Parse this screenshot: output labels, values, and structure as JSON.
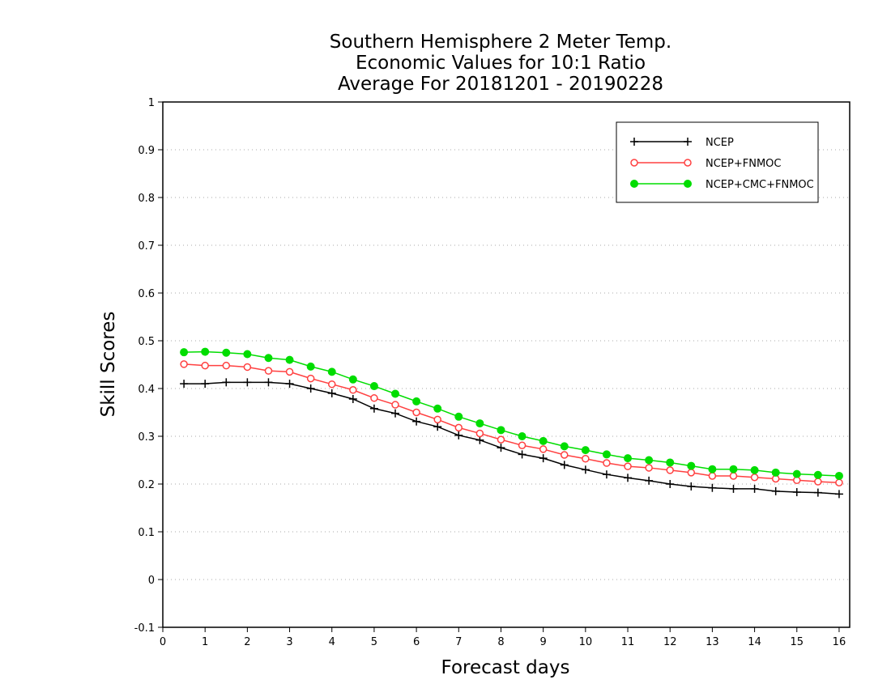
{
  "chart_data": {
    "type": "line",
    "title": [
      "Southern Hemisphere 2 Meter Temp.",
      "Economic Values for 10:1 Ratio",
      "Average For 20181201 - 20190228"
    ],
    "xlabel": "Forecast days",
    "ylabel": "Skill Scores",
    "xlim": [
      0,
      16.25
    ],
    "ylim": [
      -0.1,
      1
    ],
    "xticks": [
      0,
      1,
      2,
      3,
      4,
      5,
      6,
      7,
      8,
      9,
      10,
      11,
      12,
      13,
      14,
      15,
      16
    ],
    "yticks": [
      -0.1,
      0,
      0.1,
      0.2,
      0.3,
      0.4,
      0.5,
      0.6,
      0.7,
      0.8,
      0.9,
      1
    ],
    "ytick_labels": [
      "-0.1",
      "0",
      "0.1",
      "0.2",
      "0.3",
      "0.4",
      "0.5",
      "0.6",
      "0.7",
      "0.8",
      "0.9",
      "1"
    ],
    "grid": "horizontal dotted",
    "legend_position": "top-right",
    "x": [
      0.5,
      1,
      1.5,
      2,
      2.5,
      3,
      3.5,
      4,
      4.5,
      5,
      5.5,
      6,
      6.5,
      7,
      7.5,
      8,
      8.5,
      9,
      9.5,
      10,
      10.5,
      11,
      11.5,
      12,
      12.5,
      13,
      13.5,
      14,
      14.5,
      15,
      15.5,
      16
    ],
    "series": [
      {
        "name": "NCEP",
        "color": "#000000",
        "marker": "plus",
        "values": [
          0.41,
          0.41,
          0.413,
          0.413,
          0.413,
          0.41,
          0.4,
          0.39,
          0.378,
          0.358,
          0.348,
          0.331,
          0.32,
          0.302,
          0.292,
          0.276,
          0.262,
          0.254,
          0.24,
          0.23,
          0.22,
          0.213,
          0.207,
          0.2,
          0.195,
          0.192,
          0.19,
          0.19,
          0.185,
          0.183,
          0.182,
          0.179
        ]
      },
      {
        "name": "NCEP+FNMOC",
        "color": "#ff4040",
        "marker": "open-circle",
        "values": [
          0.451,
          0.448,
          0.448,
          0.445,
          0.437,
          0.435,
          0.421,
          0.409,
          0.397,
          0.38,
          0.366,
          0.35,
          0.335,
          0.318,
          0.306,
          0.293,
          0.281,
          0.273,
          0.261,
          0.253,
          0.244,
          0.237,
          0.234,
          0.229,
          0.224,
          0.217,
          0.217,
          0.214,
          0.211,
          0.208,
          0.205,
          0.203
        ]
      },
      {
        "name": "NCEP+CMC+FNMOC",
        "color": "#00dd00",
        "marker": "filled-circle",
        "values": [
          0.476,
          0.477,
          0.475,
          0.472,
          0.464,
          0.46,
          0.446,
          0.435,
          0.419,
          0.405,
          0.389,
          0.373,
          0.358,
          0.341,
          0.327,
          0.313,
          0.3,
          0.29,
          0.279,
          0.271,
          0.262,
          0.254,
          0.25,
          0.245,
          0.238,
          0.231,
          0.231,
          0.229,
          0.224,
          0.221,
          0.219,
          0.217
        ]
      }
    ]
  }
}
